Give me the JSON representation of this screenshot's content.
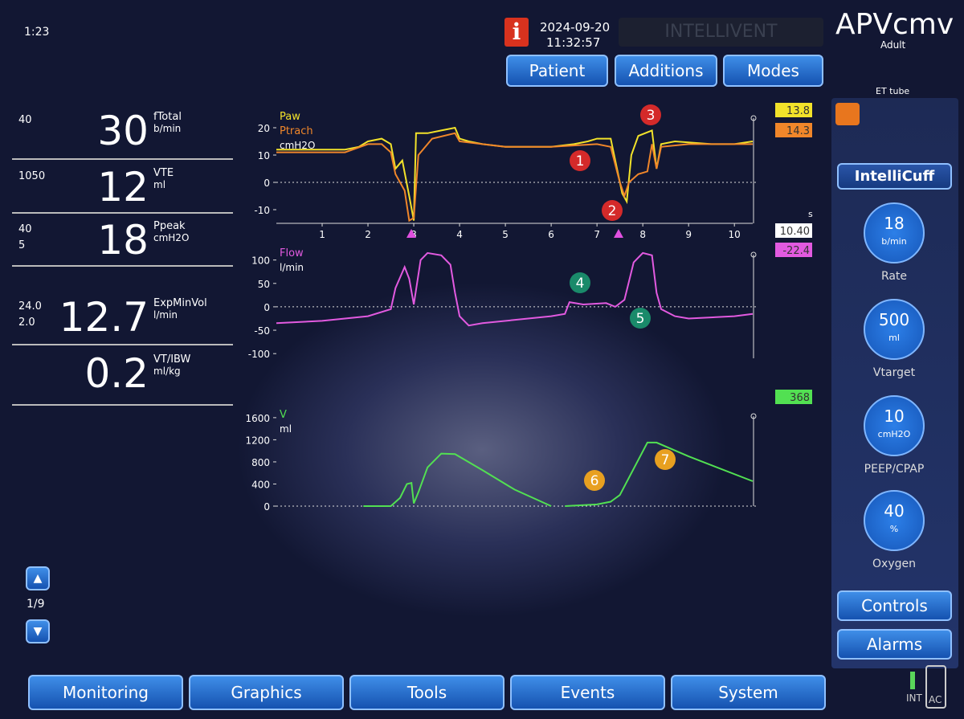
{
  "status": {
    "alarm_timer": "1:23",
    "date": "2024-09-20",
    "time": "11:32:57",
    "system_name": "INTELLIVENT",
    "mode": "APVcmv",
    "patient_type": "Adult",
    "info_icon": "i"
  },
  "top_tabs": [
    "Patient",
    "Additions",
    "Modes"
  ],
  "monitoring": [
    {
      "limits": [
        "40"
      ],
      "value": "30",
      "name": "fTotal",
      "unit": "b/min"
    },
    {
      "limits": [
        "1050"
      ],
      "value": "12",
      "name": "VTE",
      "unit": "ml"
    },
    {
      "limits": [
        "40",
        "5"
      ],
      "value": "18",
      "name": "Ppeak",
      "unit": "cmH2O"
    },
    {
      "limits": [
        "24.0",
        "2.0"
      ],
      "value": "12.7",
      "name": "ExpMinVol",
      "unit": "l/min"
    },
    {
      "limits": [],
      "value": "0.2",
      "name": "VT/IBW",
      "unit": "ml/kg"
    }
  ],
  "right_panel": {
    "et_tube": "ET tube",
    "intellicuff": "IntelliCuff",
    "controls": [
      {
        "value": "18",
        "unit": "b/min",
        "label": "Rate"
      },
      {
        "value": "500",
        "unit": "ml",
        "label": "Vtarget"
      },
      {
        "value": "10",
        "unit": "cmH2O",
        "label": "PEEP/CPAP"
      },
      {
        "value": "40",
        "unit": "%",
        "label": "Oxygen"
      }
    ],
    "buttons": [
      "Controls",
      "Alarms"
    ],
    "power": [
      "INT",
      "AC"
    ]
  },
  "page_indicator": "1/9",
  "bottom_tabs": [
    "Monitoring",
    "Graphics",
    "Tools",
    "Events",
    "System"
  ],
  "chart_data": [
    {
      "type": "line",
      "y_label": "cmH2O",
      "x_unit": "s",
      "cursor_value": "10.40",
      "xlim": [
        0,
        10.4
      ],
      "xticks": [
        1,
        2,
        3,
        4,
        5,
        6,
        7,
        8,
        9,
        10
      ],
      "ylim": [
        -15,
        25
      ],
      "yticks": [
        20,
        10,
        0,
        -10
      ],
      "annotations": [
        "1",
        "2",
        "3"
      ],
      "series": [
        {
          "name": "Paw",
          "color": "#f2e22a",
          "readout": 13.8,
          "x": [
            0,
            0.5,
            1,
            1.5,
            1.8,
            2,
            2.3,
            2.5,
            2.6,
            2.75,
            2.9,
            3.0,
            3.05,
            3.3,
            3.6,
            3.9,
            4.0,
            4.2,
            4.5,
            5,
            6,
            6.5,
            6.8,
            7,
            7.3,
            7.4,
            7.55,
            7.65,
            7.75,
            7.9,
            8.2,
            8.3,
            8.4,
            8.7,
            9.5,
            10,
            10.4
          ],
          "values": [
            12,
            12,
            12,
            12,
            13,
            15,
            16,
            14,
            5,
            8,
            -5,
            -14,
            18,
            18,
            19,
            20,
            16,
            15,
            14,
            13,
            13,
            14,
            15,
            16,
            16,
            8,
            -4,
            -7,
            10,
            17,
            19,
            5,
            14,
            15,
            14,
            14,
            15
          ]
        },
        {
          "name": "Ptrach",
          "color": "#f0862a",
          "readout": 14.3,
          "x": [
            0,
            1.5,
            2,
            2.3,
            2.5,
            2.6,
            2.8,
            2.9,
            3.0,
            3.1,
            3.4,
            3.9,
            4.0,
            4.5,
            5,
            6,
            7,
            7.3,
            7.5,
            7.6,
            7.7,
            7.9,
            8.1,
            8.2,
            8.3,
            8.4,
            9,
            10,
            10.4
          ],
          "values": [
            11,
            11,
            14,
            14,
            11,
            3,
            -3,
            -14,
            -13,
            10,
            16,
            18,
            15,
            14,
            13,
            13,
            14,
            13,
            0,
            -5,
            0,
            3,
            4,
            14,
            5,
            13,
            14,
            14,
            14
          ]
        }
      ]
    },
    {
      "type": "line",
      "y_label": "l/min",
      "xlim": [
        0,
        10.4
      ],
      "ylim": [
        -110,
        120
      ],
      "yticks": [
        100,
        50,
        0,
        -50,
        -100
      ],
      "annotations": [
        "4",
        "5"
      ],
      "series": [
        {
          "name": "Flow",
          "color": "#e25ae0",
          "readout": -22.4,
          "x": [
            0,
            1,
            2,
            2.5,
            2.6,
            2.8,
            2.9,
            3.0,
            3.15,
            3.3,
            3.6,
            3.8,
            3.9,
            4.0,
            4.2,
            4.5,
            6,
            6.3,
            6.4,
            6.7,
            7.2,
            7.4,
            7.6,
            7.8,
            8.0,
            8.2,
            8.3,
            8.4,
            8.7,
            9,
            10,
            10.4
          ],
          "values": [
            -35,
            -30,
            -20,
            -5,
            40,
            85,
            60,
            5,
            100,
            115,
            110,
            90,
            30,
            -20,
            -40,
            -35,
            -20,
            -15,
            10,
            5,
            8,
            0,
            15,
            95,
            115,
            110,
            30,
            -5,
            -20,
            -25,
            -20,
            -15
          ]
        }
      ]
    },
    {
      "type": "line",
      "y_label": "ml",
      "xlim": [
        0,
        10.4
      ],
      "ylim": [
        0,
        1700
      ],
      "yticks": [
        1600,
        1200,
        800,
        400,
        0
      ],
      "annotations": [
        "6",
        "7"
      ],
      "series": [
        {
          "name": "V",
          "color": "#52e052",
          "readout": 368,
          "x": [
            1.9,
            2.5,
            2.7,
            2.85,
            2.95,
            3.0,
            3.1,
            3.3,
            3.6,
            3.9,
            4.5,
            5.2,
            6.0,
            6.2,
            6.3,
            7.0,
            7.3,
            7.5,
            8.1,
            8.3,
            9.0,
            10.4
          ],
          "values": [
            0,
            0,
            150,
            400,
            420,
            50,
            250,
            700,
            950,
            940,
            650,
            300,
            0,
            null,
            0,
            30,
            80,
            200,
            1150,
            1150,
            900,
            450
          ]
        }
      ]
    }
  ]
}
